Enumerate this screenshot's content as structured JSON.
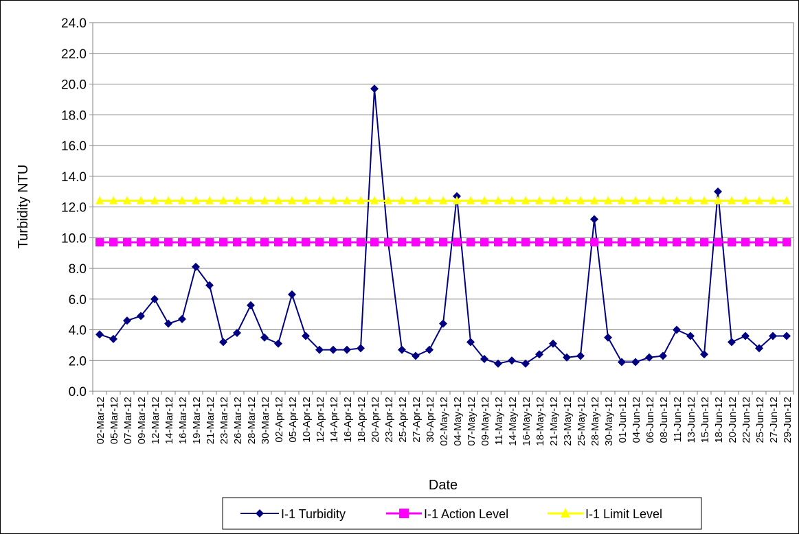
{
  "chart_data": {
    "type": "line",
    "xlabel": "Date",
    "ylabel": "Turbidity NTU",
    "ylim": [
      0,
      24
    ],
    "ytick_step": 2,
    "grid": true,
    "legend_placement": "bottom",
    "categories": [
      "02-Mar-12",
      "05-Mar-12",
      "07-Mar-12",
      "09-Mar-12",
      "12-Mar-12",
      "14-Mar-12",
      "16-Mar-12",
      "19-Mar-12",
      "21-Mar-12",
      "23-Mar-12",
      "26-Mar-12",
      "28-Mar-12",
      "30-Mar-12",
      "02-Apr-12",
      "05-Apr-12",
      "10-Apr-12",
      "12-Apr-12",
      "14-Apr-12",
      "16-Apr-12",
      "18-Apr-12",
      "20-Apr-12",
      "23-Apr-12",
      "25-Apr-12",
      "27-Apr-12",
      "30-Apr-12",
      "02-May-12",
      "04-May-12",
      "07-May-12",
      "09-May-12",
      "11-May-12",
      "14-May-12",
      "16-May-12",
      "18-May-12",
      "21-May-12",
      "23-May-12",
      "25-May-12",
      "28-May-12",
      "30-May-12",
      "01-Jun-12",
      "04-Jun-12",
      "06-Jun-12",
      "08-Jun-12",
      "11-Jun-12",
      "13-Jun-12",
      "15-Jun-12",
      "18-Jun-12",
      "20-Jun-12",
      "22-Jun-12",
      "25-Jun-12",
      "27-Jun-12",
      "29-Jun-12"
    ],
    "series": [
      {
        "name": "I-1 Turbidity",
        "color": "#000080",
        "marker": "diamond",
        "values": [
          3.7,
          3.4,
          4.6,
          4.9,
          6.0,
          4.4,
          4.7,
          8.1,
          6.9,
          3.2,
          3.8,
          5.6,
          3.5,
          3.1,
          6.3,
          3.6,
          2.7,
          2.7,
          2.7,
          2.8,
          19.7,
          9.7,
          2.7,
          2.3,
          2.7,
          4.4,
          12.7,
          3.2,
          2.1,
          1.8,
          2.0,
          1.8,
          2.4,
          3.1,
          2.2,
          2.3,
          11.2,
          3.5,
          1.9,
          1.9,
          2.2,
          2.3,
          4.0,
          3.6,
          2.4,
          13.0,
          3.2,
          3.6,
          2.8,
          3.6,
          3.6
        ]
      },
      {
        "name": "I-1 Action Level",
        "color": "#FF00FF",
        "marker": "square",
        "values": [
          9.7,
          9.7,
          9.7,
          9.7,
          9.7,
          9.7,
          9.7,
          9.7,
          9.7,
          9.7,
          9.7,
          9.7,
          9.7,
          9.7,
          9.7,
          9.7,
          9.7,
          9.7,
          9.7,
          9.7,
          9.7,
          9.7,
          9.7,
          9.7,
          9.7,
          9.7,
          9.7,
          9.7,
          9.7,
          9.7,
          9.7,
          9.7,
          9.7,
          9.7,
          9.7,
          9.7,
          9.7,
          9.7,
          9.7,
          9.7,
          9.7,
          9.7,
          9.7,
          9.7,
          9.7,
          9.7,
          9.7,
          9.7,
          9.7,
          9.7,
          9.7
        ]
      },
      {
        "name": "I-1 Limit Level",
        "color": "#FFFF00",
        "marker": "triangle",
        "values": [
          12.4,
          12.4,
          12.4,
          12.4,
          12.4,
          12.4,
          12.4,
          12.4,
          12.4,
          12.4,
          12.4,
          12.4,
          12.4,
          12.4,
          12.4,
          12.4,
          12.4,
          12.4,
          12.4,
          12.4,
          12.4,
          12.4,
          12.4,
          12.4,
          12.4,
          12.4,
          12.4,
          12.4,
          12.4,
          12.4,
          12.4,
          12.4,
          12.4,
          12.4,
          12.4,
          12.4,
          12.4,
          12.4,
          12.4,
          12.4,
          12.4,
          12.4,
          12.4,
          12.4,
          12.4,
          12.4,
          12.4,
          12.4,
          12.4,
          12.4,
          12.4
        ]
      }
    ]
  }
}
